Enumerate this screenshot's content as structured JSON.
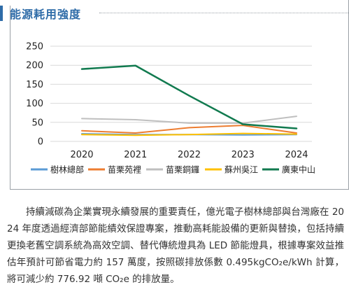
{
  "section_title": "能源耗用強度",
  "chart_data": {
    "type": "line",
    "title": "",
    "xlabel": "",
    "ylabel": "",
    "x": [
      "2020",
      "2021",
      "2022",
      "2023",
      "2024"
    ],
    "yticks": [
      0,
      50,
      100,
      150,
      200,
      250
    ],
    "ylim": [
      0,
      250
    ],
    "grid": "horizontal",
    "legend_position": "bottom",
    "series": [
      {
        "name": "樹林總部",
        "color": "#5b9bd5",
        "values": [
          20,
          18,
          18,
          17,
          18
        ],
        "width": 2
      },
      {
        "name": "苗栗苑裡",
        "color": "#ed7d31",
        "values": [
          28,
          22,
          36,
          42,
          22
        ],
        "width": 2
      },
      {
        "name": "苗栗銅鑼",
        "color": "#bfbfbf",
        "values": [
          60,
          57,
          48,
          48,
          66
        ],
        "width": 2
      },
      {
        "name": "蘇州吳江",
        "color": "#ffc000",
        "values": [
          18,
          16,
          18,
          21,
          19
        ],
        "width": 2
      },
      {
        "name": "廣東中山",
        "color": "#117a4f",
        "values": [
          190,
          199,
          120,
          45,
          34
        ],
        "width": 2.5
      }
    ]
  },
  "body_text": "持續減碳為企業實現永續發展的重要責任，億光電子樹林總部與台灣廠在 2024 年度透過經濟部節能績效保證專案，推動高耗能設備的更新與替換，包括持續更換老舊空調系統為高效空調、替代傳統燈具為 LED 節能燈具，根據專案效益推估年預計可節省電力約 157 萬度，按照碳排放係數 0.495kgCO₂e/kWh 計算，將可減少約 776.92 噸 CO₂e 的排放量。"
}
